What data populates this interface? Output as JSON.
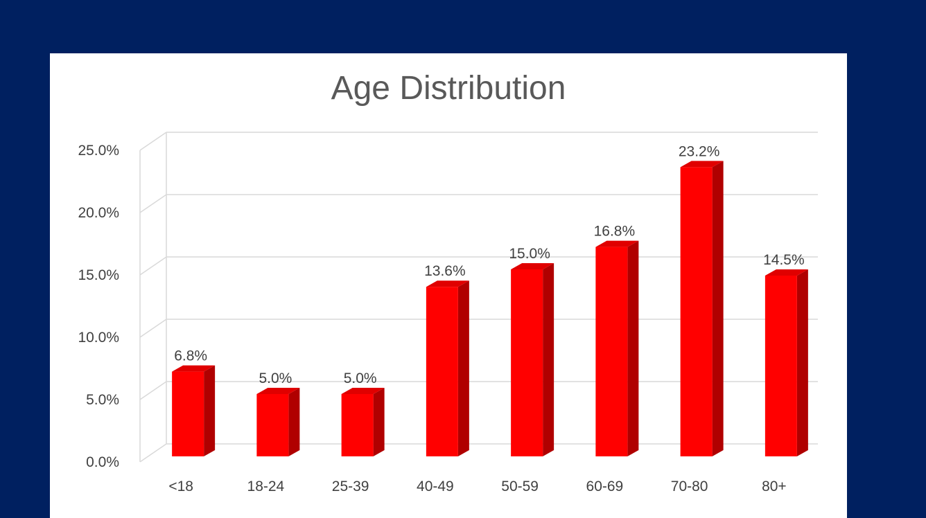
{
  "chart_data": {
    "type": "bar",
    "title": "Age Distribution",
    "categories": [
      "<18",
      "18-24",
      "25-39",
      "40-49",
      "50-59",
      "60-69",
      "70-80",
      "80+"
    ],
    "series": [
      {
        "values": [
          6.8,
          5.0,
          5.0,
          13.6,
          15.0,
          16.8,
          23.2,
          14.5
        ]
      }
    ],
    "data_labels": [
      "6.8%",
      "5.0%",
      "5.0%",
      "13.6%",
      "15.0%",
      "16.8%",
      "23.2%",
      "14.5%"
    ],
    "y_ticks": [
      "0.0%",
      "5.0%",
      "10.0%",
      "15.0%",
      "20.0%",
      "25.0%"
    ],
    "ylim": [
      0,
      25
    ],
    "grid": true,
    "legend": false,
    "style": "3d-column"
  },
  "colors": {
    "background": "#002060",
    "panel": "#ffffff",
    "bar_front": "#ff0000",
    "bar_side": "#b00000",
    "bar_top": "#e00000",
    "gridline": "#d9d9d9",
    "text": "#404040",
    "title": "#595959"
  }
}
